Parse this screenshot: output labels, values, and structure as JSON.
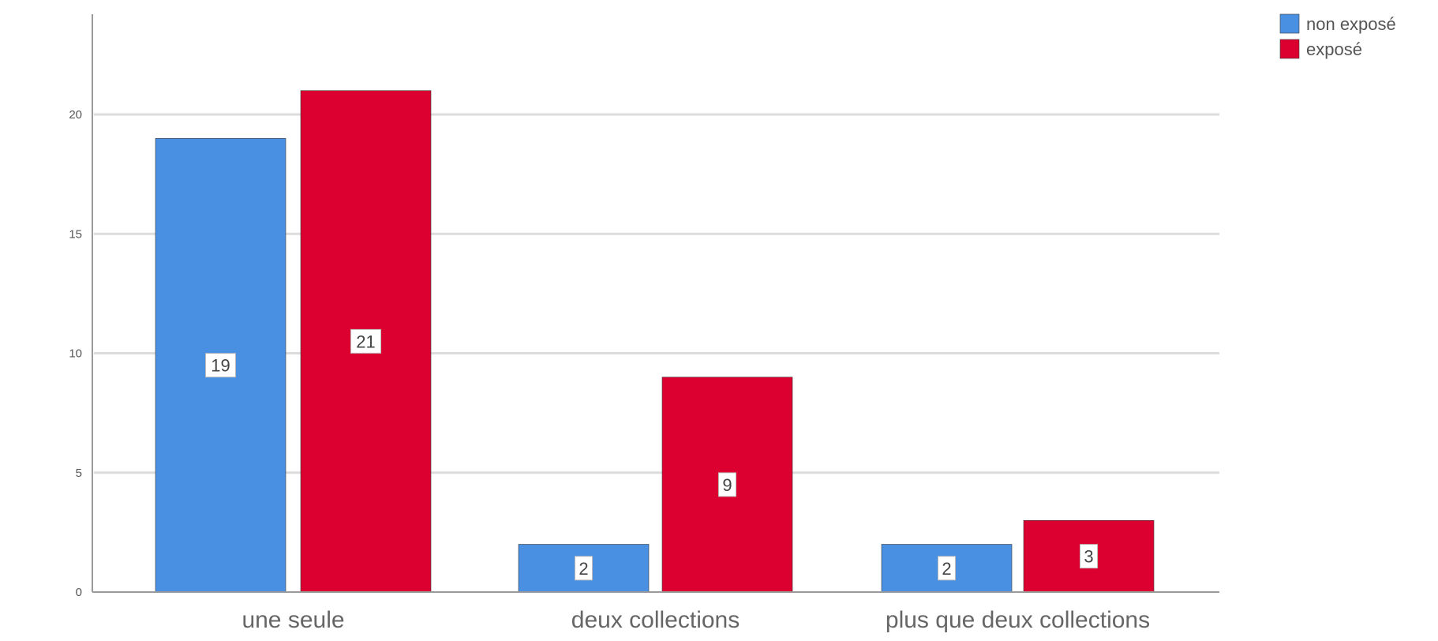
{
  "chart_data": {
    "type": "bar",
    "categories": [
      "une seule",
      "deux collections",
      "plus que deux collections"
    ],
    "series": [
      {
        "name": "non exposé",
        "values": [
          19,
          2,
          2
        ],
        "color": "#4a90e2"
      },
      {
        "name": "exposé",
        "values": [
          21,
          9,
          3
        ],
        "color": "#dc0030"
      }
    ],
    "ylim": [
      0,
      24
    ],
    "yticks": [
      0,
      5,
      10,
      15,
      20
    ],
    "grid": true,
    "legend_position": "top-right",
    "data_labels": true
  }
}
